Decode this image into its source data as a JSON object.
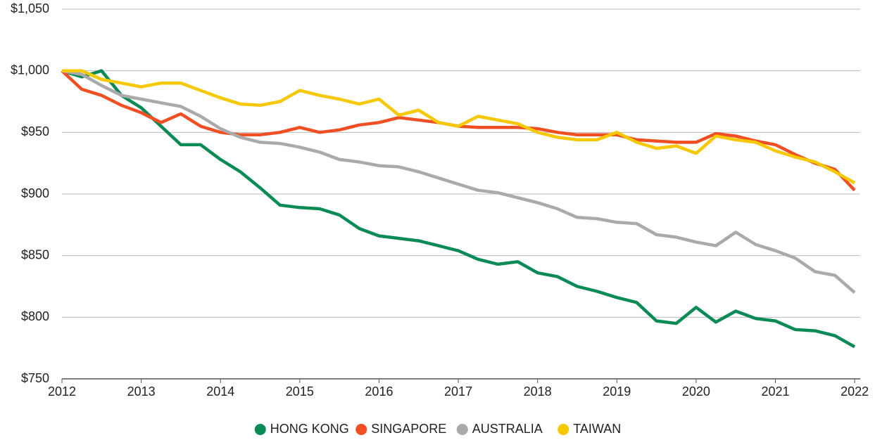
{
  "chart_data": {
    "type": "line",
    "x": [
      2012,
      2012.25,
      2012.5,
      2012.75,
      2013,
      2013.25,
      2013.5,
      2013.75,
      2014,
      2014.25,
      2014.5,
      2014.75,
      2015,
      2015.25,
      2015.5,
      2015.75,
      2016,
      2016.25,
      2016.5,
      2016.75,
      2017,
      2017.25,
      2017.5,
      2017.75,
      2018,
      2018.25,
      2018.5,
      2018.75,
      2019,
      2019.25,
      2019.5,
      2019.75,
      2020,
      2020.25,
      2020.5,
      2020.75,
      2021,
      2021.25,
      2021.5,
      2021.75,
      2022
    ],
    "series": [
      {
        "name": "HONG KONG",
        "color": "#0a8a55",
        "values": [
          1000,
          995,
          1000,
          980,
          970,
          955,
          940,
          940,
          928,
          918,
          905,
          891,
          889,
          888,
          883,
          872,
          866,
          864,
          862,
          858,
          854,
          847,
          843,
          845,
          836,
          833,
          825,
          821,
          816,
          812,
          797,
          795,
          808,
          796,
          805,
          799,
          797,
          790,
          789,
          785,
          776
        ]
      },
      {
        "name": "SINGAPORE",
        "color": "#f04e23",
        "values": [
          1000,
          985,
          980,
          972,
          966,
          958,
          965,
          955,
          950,
          948,
          948,
          950,
          954,
          950,
          952,
          956,
          958,
          962,
          960,
          958,
          955,
          954,
          954,
          954,
          953,
          950,
          948,
          948,
          948,
          944,
          943,
          942,
          942,
          949,
          947,
          943,
          940,
          932,
          925,
          920,
          903
        ]
      },
      {
        "name": "AUSTRALIA",
        "color": "#aaaaaa",
        "values": [
          1000,
          997,
          988,
          980,
          977,
          974,
          971,
          963,
          953,
          946,
          942,
          941,
          938,
          934,
          928,
          926,
          923,
          922,
          918,
          913,
          908,
          903,
          901,
          897,
          893,
          888,
          881,
          880,
          877,
          876,
          867,
          865,
          861,
          858,
          869,
          859,
          854,
          848,
          837,
          834,
          820
        ]
      },
      {
        "name": "TAIWAN",
        "color": "#f5c800",
        "values": [
          1000,
          1000,
          993,
          990,
          987,
          990,
          990,
          984,
          978,
          973,
          972,
          975,
          984,
          980,
          977,
          973,
          977,
          964,
          968,
          958,
          955,
          963,
          960,
          957,
          950,
          946,
          944,
          944,
          950,
          942,
          937,
          939,
          933,
          947,
          944,
          942,
          935,
          930,
          926,
          918,
          909
        ]
      }
    ],
    "xlim": [
      2012,
      2022.07
    ],
    "xticks": [
      2012,
      2013,
      2014,
      2015,
      2016,
      2017,
      2018,
      2019,
      2020,
      2021,
      2022
    ],
    "ylim": [
      750,
      1050
    ],
    "yticks": [
      {
        "value": 750,
        "label": "$750"
      },
      {
        "value": 800,
        "label": "$800"
      },
      {
        "value": 850,
        "label": "$850"
      },
      {
        "value": 900,
        "label": "$900"
      },
      {
        "value": 950,
        "label": "$950"
      },
      {
        "value": 1000,
        "label": "$1,000"
      },
      {
        "value": 1050,
        "label": "$1,050"
      }
    ],
    "grid": true,
    "legend": "bottom"
  }
}
